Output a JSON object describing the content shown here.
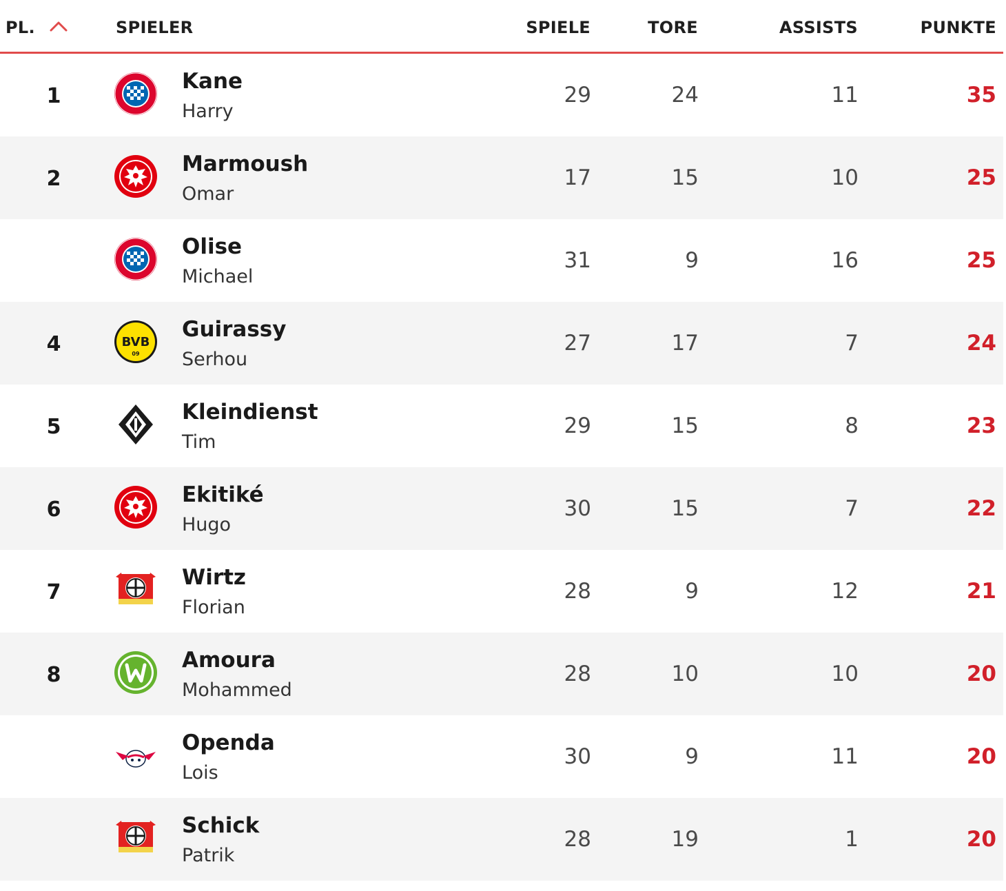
{
  "header": {
    "rank_label": "PL.",
    "player_label": "SPIELER",
    "games_label": "SPIELE",
    "goals_label": "TORE",
    "assists_label": "ASSISTS",
    "points_label": "PUNKTE",
    "sort_icon": "chevron-up-icon",
    "accent_color": "#e04b4b"
  },
  "rows": [
    {
      "rank": "1",
      "last": "Kane",
      "first": "Harry",
      "games": "29",
      "goals": "24",
      "assists": "11",
      "points": "35",
      "club_icon": "bayern-munich-logo-icon"
    },
    {
      "rank": "2",
      "last": "Marmoush",
      "first": "Omar",
      "games": "17",
      "goals": "15",
      "assists": "10",
      "points": "25",
      "club_icon": "eintracht-frankfurt-logo-icon"
    },
    {
      "rank": "",
      "last": "Olise",
      "first": "Michael",
      "games": "31",
      "goals": "9",
      "assists": "16",
      "points": "25",
      "club_icon": "bayern-munich-logo-icon"
    },
    {
      "rank": "4",
      "last": "Guirassy",
      "first": "Serhou",
      "games": "27",
      "goals": "17",
      "assists": "7",
      "points": "24",
      "club_icon": "borussia-dortmund-logo-icon"
    },
    {
      "rank": "5",
      "last": "Kleindienst",
      "first": "Tim",
      "games": "29",
      "goals": "15",
      "assists": "8",
      "points": "23",
      "club_icon": "borussia-moenchengladbach-logo-icon"
    },
    {
      "rank": "6",
      "last": "Ekitiké",
      "first": "Hugo",
      "games": "30",
      "goals": "15",
      "assists": "7",
      "points": "22",
      "club_icon": "eintracht-frankfurt-logo-icon"
    },
    {
      "rank": "7",
      "last": "Wirtz",
      "first": "Florian",
      "games": "28",
      "goals": "9",
      "assists": "12",
      "points": "21",
      "club_icon": "bayer-leverkusen-logo-icon"
    },
    {
      "rank": "8",
      "last": "Amoura",
      "first": "Mohammed",
      "games": "28",
      "goals": "10",
      "assists": "10",
      "points": "20",
      "club_icon": "vfl-wolfsburg-logo-icon"
    },
    {
      "rank": "",
      "last": "Openda",
      "first": "Lois",
      "games": "30",
      "goals": "9",
      "assists": "11",
      "points": "20",
      "club_icon": "rb-leipzig-logo-icon"
    },
    {
      "rank": "",
      "last": "Schick",
      "first": "Patrik",
      "games": "28",
      "goals": "19",
      "assists": "1",
      "points": "20",
      "club_icon": "bayer-leverkusen-logo-icon"
    }
  ],
  "colors": {
    "points": "#d1202a",
    "alt_row_bg": "#f4f4f4"
  }
}
